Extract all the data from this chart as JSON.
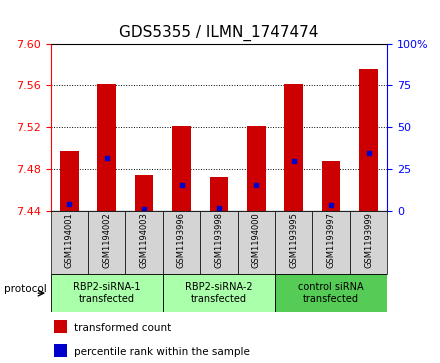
{
  "title": "GDS5355 / ILMN_1747474",
  "categories": [
    "GSM1194001",
    "GSM1194002",
    "GSM1194003",
    "GSM1193996",
    "GSM1193998",
    "GSM1194000",
    "GSM1193995",
    "GSM1193997",
    "GSM1193999"
  ],
  "bar_tops": [
    7.497,
    7.561,
    7.474,
    7.521,
    7.472,
    7.521,
    7.561,
    7.487,
    7.576
  ],
  "bar_bottom": 7.44,
  "blue_values": [
    7.446,
    7.49,
    7.441,
    7.464,
    7.442,
    7.464,
    7.487,
    7.445,
    7.495
  ],
  "ylim_left": [
    7.44,
    7.6
  ],
  "ylim_right": [
    0,
    100
  ],
  "yticks_left": [
    7.44,
    7.48,
    7.52,
    7.56,
    7.6
  ],
  "yticks_right": [
    0,
    25,
    50,
    75,
    100
  ],
  "bar_color": "#cc0000",
  "blue_color": "#0000cc",
  "bg_color": "#d4d4d4",
  "protocol_groups": [
    {
      "label": "RBP2-siRNA-1\ntransfected",
      "indices": [
        0,
        1,
        2
      ],
      "color": "#aaffaa"
    },
    {
      "label": "RBP2-siRNA-2\ntransfected",
      "indices": [
        3,
        4,
        5
      ],
      "color": "#aaffaa"
    },
    {
      "label": "control siRNA\ntransfected",
      "indices": [
        6,
        7,
        8
      ],
      "color": "#55cc55"
    }
  ],
  "protocol_label": "protocol",
  "legend": [
    {
      "label": "transformed count",
      "color": "#cc0000"
    },
    {
      "label": "percentile rank within the sample",
      "color": "#0000cc"
    }
  ],
  "title_fontsize": 11,
  "tick_fontsize": 8,
  "bar_width": 0.5
}
